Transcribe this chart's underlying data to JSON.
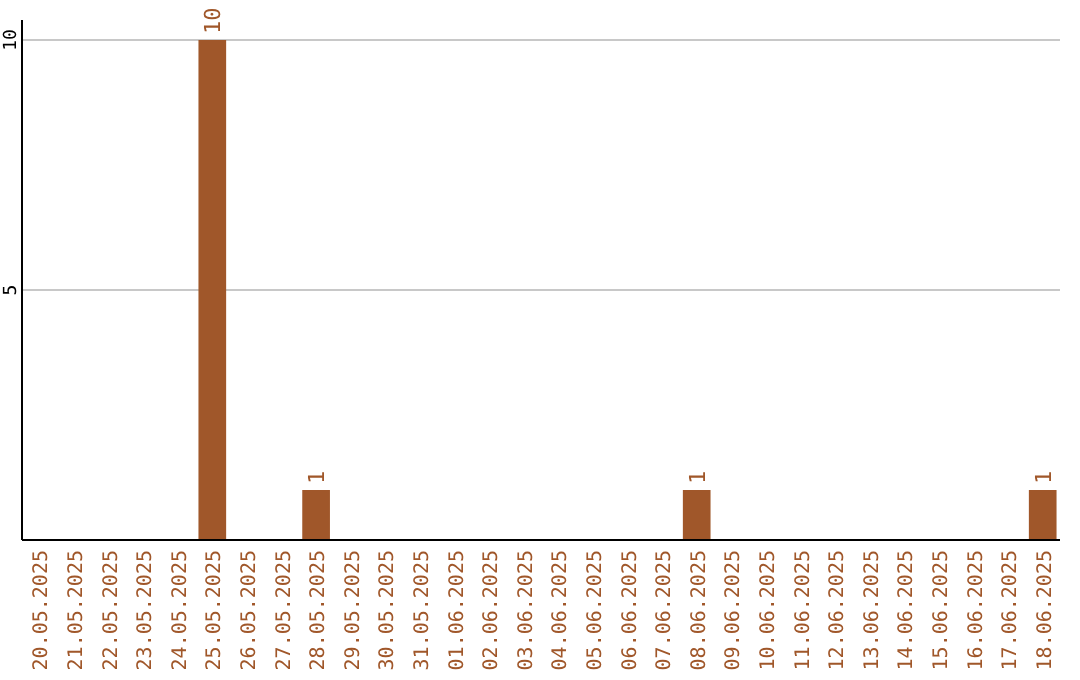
{
  "chart_data": {
    "type": "bar",
    "categories": [
      "20.05.2025",
      "21.05.2025",
      "22.05.2025",
      "23.05.2025",
      "24.05.2025",
      "25.05.2025",
      "26.05.2025",
      "27.05.2025",
      "28.05.2025",
      "29.05.2025",
      "30.05.2025",
      "31.05.2025",
      "01.06.2025",
      "02.06.2025",
      "03.06.2025",
      "04.06.2025",
      "05.06.2025",
      "06.06.2025",
      "07.06.2025",
      "08.06.2025",
      "09.06.2025",
      "10.06.2025",
      "11.06.2025",
      "12.06.2025",
      "13.06.2025",
      "14.06.2025",
      "15.06.2025",
      "16.06.2025",
      "17.06.2025",
      "18.06.2025"
    ],
    "values": [
      0,
      0,
      0,
      0,
      0,
      10,
      0,
      0,
      1,
      0,
      0,
      0,
      0,
      0,
      0,
      0,
      0,
      0,
      0,
      1,
      0,
      0,
      0,
      0,
      0,
      0,
      0,
      0,
      0,
      1
    ],
    "value_labels": [
      null,
      null,
      null,
      null,
      null,
      "10",
      null,
      null,
      "1",
      null,
      null,
      null,
      null,
      null,
      null,
      null,
      null,
      null,
      null,
      "1",
      null,
      null,
      null,
      null,
      null,
      null,
      null,
      null,
      null,
      "1"
    ],
    "color": "#a0572a",
    "ylim": [
      0,
      10.4
    ],
    "yticks": [
      5,
      10
    ],
    "grid": "y"
  }
}
